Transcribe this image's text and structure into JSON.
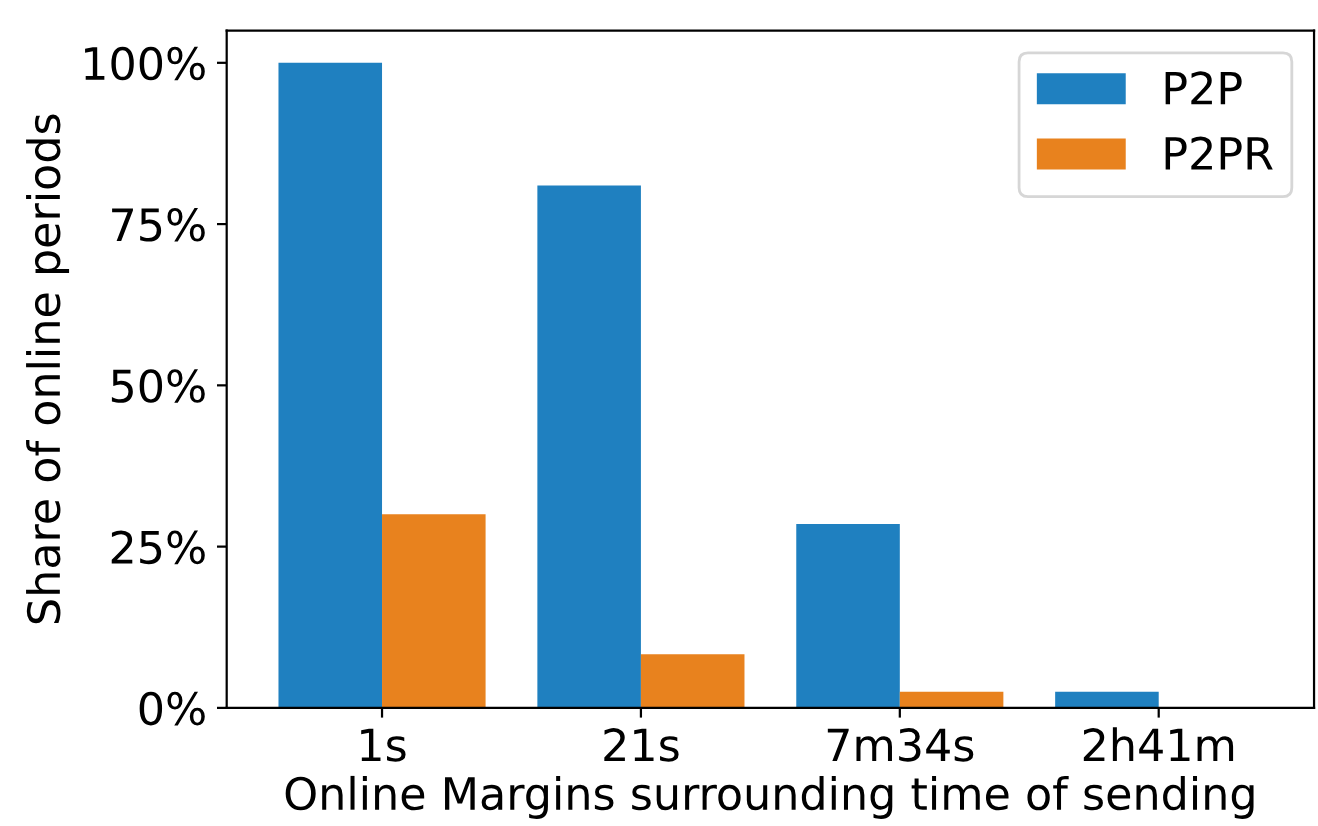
{
  "chart_data": {
    "type": "bar",
    "xlabel": "Online Margins surrounding time of sending",
    "ylabel": "Share of online periods",
    "categories": [
      "1s",
      "21s",
      "7m34s",
      "2h41m"
    ],
    "series": [
      {
        "name": "P2P",
        "color": "#1f80c0",
        "values": [
          100,
          81,
          28.5,
          2.5
        ]
      },
      {
        "name": "P2PR",
        "color": "#e8821e",
        "values": [
          30,
          8.3,
          2.5,
          0
        ]
      }
    ],
    "ylim": [
      0,
      105
    ],
    "yticks": [
      {
        "value": 0,
        "label": "0%"
      },
      {
        "value": 25,
        "label": "25%"
      },
      {
        "value": 50,
        "label": "50%"
      },
      {
        "value": 75,
        "label": "75%"
      },
      {
        "value": 100,
        "label": "100%"
      }
    ],
    "grid": false,
    "legend": "top right"
  }
}
